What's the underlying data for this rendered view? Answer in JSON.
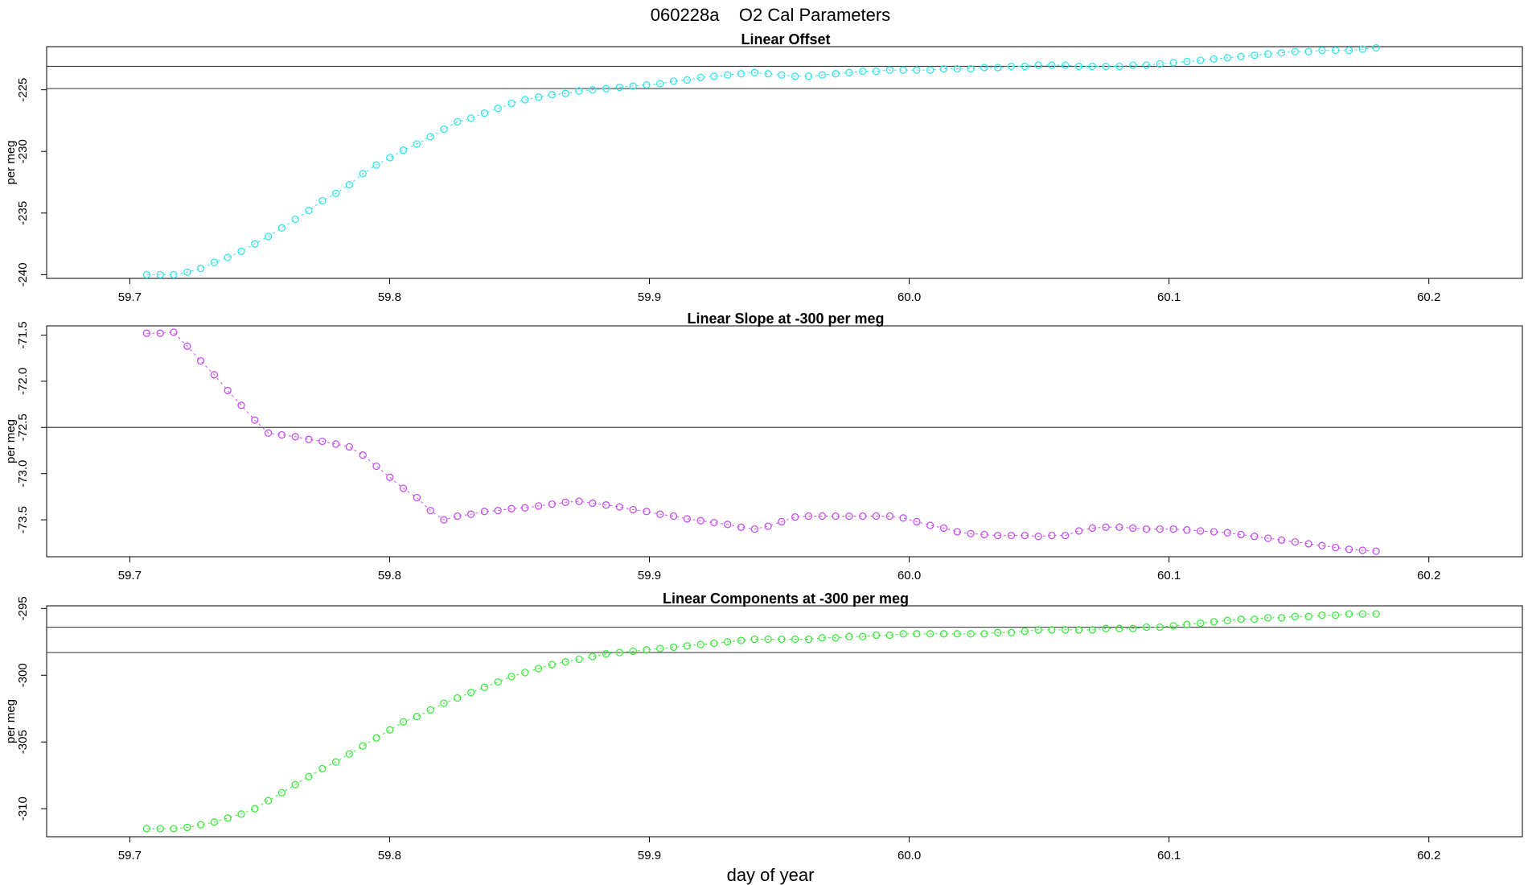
{
  "figure": {
    "title": "060228a    O2 Cal Parameters",
    "xlabel": "day of year"
  },
  "chart_data": [
    {
      "type": "scatter",
      "title": "Linear Offset",
      "ylabel": "per meg",
      "color": "#33e5ea",
      "xlim": [
        59.668,
        60.236
      ],
      "ylim": [
        -240.3,
        -221.5
      ],
      "xticks": [
        59.7,
        59.8,
        59.9,
        60.0,
        60.1,
        60.2
      ],
      "xtick_labels": [
        "59.7",
        "59.8",
        "59.9",
        "60.0",
        "60.1",
        "60.2"
      ],
      "yticks": [
        -240,
        -235,
        -230,
        -225
      ],
      "ytick_labels": [
        "-240",
        "-235",
        "-230",
        "-225"
      ],
      "hlines": [
        -223.1,
        -224.9
      ],
      "series": [
        {
          "x0": 59.7065,
          "dx": 0.0052,
          "values": [
            -240.0,
            -240.0,
            -240.0,
            -239.8,
            -239.5,
            -239.0,
            -238.6,
            -238.1,
            -237.5,
            -236.9,
            -236.2,
            -235.5,
            -234.8,
            -234.0,
            -233.4,
            -232.7,
            -231.8,
            -231.1,
            -230.5,
            -229.9,
            -229.4,
            -228.8,
            -228.2,
            -227.6,
            -227.3,
            -226.9,
            -226.5,
            -226.1,
            -225.8,
            -225.6,
            -225.4,
            -225.3,
            -225.1,
            -225.0,
            -224.9,
            -224.8,
            -224.7,
            -224.6,
            -224.5,
            -224.3,
            -224.2,
            -224.0,
            -223.9,
            -223.8,
            -223.7,
            -223.6,
            -223.7,
            -223.8,
            -223.9,
            -223.9,
            -223.8,
            -223.7,
            -223.6,
            -223.5,
            -223.5,
            -223.4,
            -223.4,
            -223.4,
            -223.4,
            -223.3,
            -223.3,
            -223.3,
            -223.2,
            -223.2,
            -223.1,
            -223.1,
            -223.0,
            -223.0,
            -223.0,
            -223.1,
            -223.1,
            -223.1,
            -223.1,
            -223.0,
            -223.0,
            -222.9,
            -222.8,
            -222.7,
            -222.6,
            -222.5,
            -222.4,
            -222.3,
            -222.2,
            -222.1,
            -222.0,
            -221.9,
            -221.9,
            -221.8,
            -221.8,
            -221.8,
            -221.7,
            -221.6
          ]
        }
      ]
    },
    {
      "type": "scatter",
      "title": "Linear Slope at -300 per meg",
      "ylabel": "per meg",
      "color": "#c64ff0",
      "xlim": [
        59.668,
        60.236
      ],
      "ylim": [
        -73.9,
        -71.4
      ],
      "xticks": [
        59.7,
        59.8,
        59.9,
        60.0,
        60.1,
        60.2
      ],
      "xtick_labels": [
        "59.7",
        "59.8",
        "59.9",
        "60.0",
        "60.1",
        "60.2"
      ],
      "yticks": [
        -73.5,
        -73.0,
        -72.5,
        -72.0,
        -71.5
      ],
      "ytick_labels": [
        "-73.5",
        "-73.0",
        "-72.5",
        "-72.0",
        "-71.5"
      ],
      "hlines": [
        -72.5
      ],
      "series": [
        {
          "x0": 59.7065,
          "dx": 0.0052,
          "values": [
            -71.48,
            -71.48,
            -71.47,
            -71.62,
            -71.78,
            -71.93,
            -72.1,
            -72.26,
            -72.42,
            -72.56,
            -72.58,
            -72.6,
            -72.63,
            -72.65,
            -72.68,
            -72.71,
            -72.8,
            -72.92,
            -73.04,
            -73.16,
            -73.26,
            -73.4,
            -73.5,
            -73.46,
            -73.44,
            -73.41,
            -73.4,
            -73.38,
            -73.37,
            -73.35,
            -73.33,
            -73.31,
            -73.3,
            -73.32,
            -73.34,
            -73.36,
            -73.39,
            -73.41,
            -73.44,
            -73.46,
            -73.49,
            -73.51,
            -73.53,
            -73.55,
            -73.58,
            -73.6,
            -73.57,
            -73.52,
            -73.47,
            -73.46,
            -73.46,
            -73.46,
            -73.46,
            -73.46,
            -73.46,
            -73.46,
            -73.48,
            -73.52,
            -73.56,
            -73.59,
            -73.63,
            -73.65,
            -73.66,
            -73.67,
            -73.67,
            -73.67,
            -73.68,
            -73.67,
            -73.67,
            -73.62,
            -73.59,
            -73.58,
            -73.58,
            -73.59,
            -73.6,
            -73.6,
            -73.6,
            -73.61,
            -73.62,
            -73.63,
            -73.64,
            -73.66,
            -73.68,
            -73.7,
            -73.72,
            -73.74,
            -73.76,
            -73.78,
            -73.8,
            -73.82,
            -73.83,
            -73.84
          ]
        }
      ]
    },
    {
      "type": "scatter",
      "title": "Linear Components at -300 per meg",
      "ylabel": "per meg",
      "color": "#3fea3f",
      "xlim": [
        59.668,
        60.236
      ],
      "ylim": [
        -312.1,
        -294.8
      ],
      "xticks": [
        59.7,
        59.8,
        59.9,
        60.0,
        60.1,
        60.2
      ],
      "xtick_labels": [
        "59.7",
        "59.8",
        "59.9",
        "60.0",
        "60.1",
        "60.2"
      ],
      "yticks": [
        -310,
        -305,
        -300,
        -295
      ],
      "ytick_labels": [
        "-310",
        "-305",
        "-300",
        "-295"
      ],
      "hlines": [
        -296.4,
        -298.3
      ],
      "series": [
        {
          "x0": 59.7065,
          "dx": 0.0052,
          "values": [
            -311.5,
            -311.5,
            -311.5,
            -311.4,
            -311.2,
            -311.0,
            -310.7,
            -310.4,
            -310.0,
            -309.4,
            -308.8,
            -308.2,
            -307.6,
            -307.0,
            -306.5,
            -305.9,
            -305.3,
            -304.7,
            -304.1,
            -303.5,
            -303.1,
            -302.6,
            -302.1,
            -301.7,
            -301.3,
            -300.9,
            -300.5,
            -300.1,
            -299.8,
            -299.5,
            -299.2,
            -299.0,
            -298.8,
            -298.6,
            -298.4,
            -298.3,
            -298.2,
            -298.1,
            -298.0,
            -297.9,
            -297.8,
            -297.7,
            -297.6,
            -297.5,
            -297.4,
            -297.3,
            -297.3,
            -297.3,
            -297.3,
            -297.3,
            -297.2,
            -297.2,
            -297.1,
            -297.1,
            -297.0,
            -297.0,
            -296.9,
            -296.9,
            -296.9,
            -296.9,
            -296.9,
            -296.9,
            -296.9,
            -296.8,
            -296.8,
            -296.7,
            -296.6,
            -296.6,
            -296.6,
            -296.6,
            -296.6,
            -296.5,
            -296.5,
            -296.5,
            -296.4,
            -296.4,
            -296.3,
            -296.2,
            -296.1,
            -296.0,
            -295.9,
            -295.8,
            -295.8,
            -295.7,
            -295.7,
            -295.6,
            -295.6,
            -295.5,
            -295.5,
            -295.4,
            -295.4,
            -295.4
          ]
        }
      ]
    }
  ]
}
